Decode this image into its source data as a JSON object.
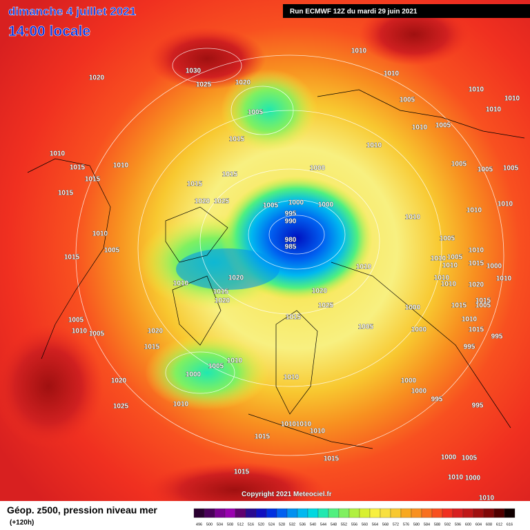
{
  "header": {
    "date": "dimanche 4 juillet 2021",
    "time": "14:00 locale",
    "run": "Run ECMWF 12Z du mardi 29 juin 2021"
  },
  "footer": {
    "title": "Géop. z500, pression niveau mer",
    "lead": "(+120h)",
    "copyright": "Copyright 2021 Meteociel.fr"
  },
  "legend": {
    "levels": [
      496,
      500,
      504,
      508,
      512,
      516,
      520,
      524,
      528,
      532,
      536,
      540,
      544,
      548,
      552,
      556,
      560,
      564,
      568,
      572,
      576,
      580,
      584,
      588,
      592,
      596,
      600,
      604,
      608,
      612,
      616
    ],
    "colors": [
      "#2a0030",
      "#4a005a",
      "#7a0090",
      "#9a00b0",
      "#600070",
      "#2a0a90",
      "#1010c0",
      "#0030e0",
      "#0060f0",
      "#0090f0",
      "#00b8f0",
      "#00d8e0",
      "#20e8b0",
      "#50f080",
      "#80f060",
      "#b0f040",
      "#d8f030",
      "#f8f040",
      "#f8e040",
      "#f8c830",
      "#f8a820",
      "#f89020",
      "#f87020",
      "#f85020",
      "#f03020",
      "#d82020",
      "#c01818",
      "#a01010",
      "#800808",
      "#500000",
      "#100000"
    ]
  },
  "isobar_labels": [
    1030,
    1025,
    1020,
    1020,
    1010,
    1010,
    1005,
    1010,
    1010,
    1010,
    1005,
    1010,
    1005,
    1010,
    1015,
    1010,
    1015,
    1010,
    1000,
    1005,
    1005,
    1005,
    1015,
    1015,
    1015,
    1015,
    1020,
    1025,
    1000,
    1000,
    1005,
    995,
    990,
    980,
    985,
    1010,
    1010,
    1010,
    1005,
    1010,
    1005,
    1015,
    1010,
    1020,
    1010,
    1015,
    1020,
    1020,
    1025,
    1000,
    1015,
    1005,
    1000,
    1005,
    1010,
    1005,
    1020,
    1015,
    1010,
    1005,
    1000,
    1010,
    1020,
    1000,
    1000,
    995,
    995,
    1025,
    1010,
    1010,
    1010,
    1010,
    1015,
    1015,
    1000,
    1005,
    1010,
    1000,
    1015,
    1010,
    1015,
    1010,
    995,
    995,
    1005,
    1015,
    1015,
    1020,
    1010,
    1015,
    1010,
    1010,
    1010,
    1010,
    1005,
    1000,
    1010
  ]
}
